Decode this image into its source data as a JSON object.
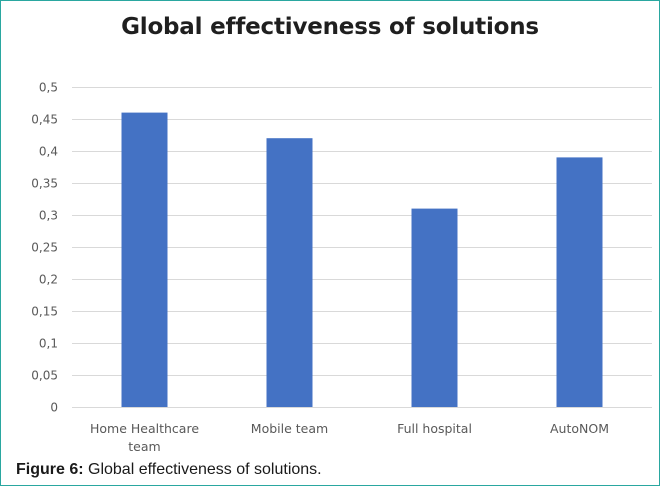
{
  "chart_data": {
    "type": "bar",
    "title": "Global effectiveness of solutions",
    "categories": [
      "Home Healthcare team",
      "Mobile team",
      "Full hospital",
      "AutoNOM"
    ],
    "category_lines": [
      [
        "Home Healthcare",
        "team"
      ],
      [
        "Mobile team"
      ],
      [
        "Full hospital"
      ],
      [
        "AutoNOM"
      ]
    ],
    "values": [
      0.46,
      0.42,
      0.31,
      0.39
    ],
    "ylim": [
      0,
      0.5
    ],
    "yticks": [
      0,
      0.05,
      0.1,
      0.15,
      0.2,
      0.25,
      0.3,
      0.35,
      0.4,
      0.45,
      0.5
    ],
    "ytick_labels": [
      "0",
      "0,05",
      "0,1",
      "0,15",
      "0,2",
      "0,25",
      "0,3",
      "0,35",
      "0,4",
      "0,45",
      "0,5"
    ],
    "xlabel": "",
    "ylabel": "",
    "grid": true,
    "legend": "none",
    "bar_color": "#4472c4",
    "grid_color": "#d9d9d9"
  },
  "caption": {
    "label": "Figure 6:",
    "text": " Global effectiveness of solutions."
  }
}
